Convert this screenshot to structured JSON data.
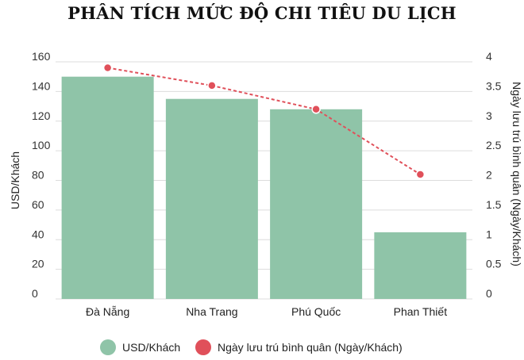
{
  "chart_data": {
    "type": "bar",
    "title": "PHÂN TÍCH MỨC ĐỘ CHI TIÊU DU LỊCH",
    "categories": [
      "Đà Nẵng",
      "Nha Trang",
      "Phú Quốc",
      "Phan Thiết"
    ],
    "series": [
      {
        "name": "USD/Khách",
        "type": "bar",
        "axis": "left",
        "values": [
          150,
          135,
          128,
          45
        ],
        "color": "#8fc4a8"
      },
      {
        "name": "Ngày lưu trú bình quân (Ngày/Khách)",
        "type": "line",
        "axis": "right",
        "values": [
          3.9,
          3.6,
          3.2,
          2.1
        ],
        "color": "#e0505a"
      }
    ],
    "ylabel": "USD/Khách",
    "y2label": "Ngày lưu trú bình quân (Ngày/Khách)",
    "ylim": [
      0,
      160
    ],
    "y2lim": [
      0,
      4
    ],
    "yticks": [
      "0",
      "20",
      "40",
      "60",
      "80",
      "100",
      "120",
      "140",
      "160"
    ],
    "y2ticks": [
      "0",
      "0.5",
      "1",
      "1.5",
      "2",
      "2.5",
      "3",
      "3.5",
      "4"
    ],
    "grid": true,
    "legend_position": "bottom"
  }
}
